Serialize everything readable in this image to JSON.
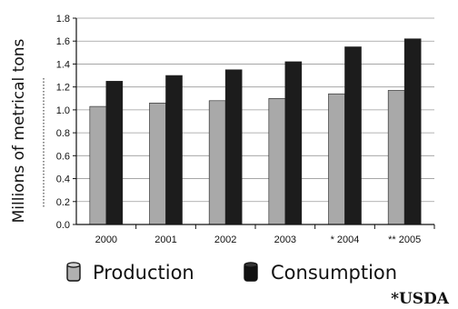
{
  "chart_data": {
    "type": "bar",
    "ylabel": "Millions of metrical tons",
    "xlabel": "",
    "title": "",
    "categories": [
      "2000",
      "2001",
      "2002",
      "2003",
      "* 2004",
      "** 2005"
    ],
    "ylim": [
      0,
      1.8
    ],
    "yticks": [
      "0.0",
      "0.2",
      "0.4",
      "0.6",
      "0.8",
      "1.0",
      "1.2",
      "1.4",
      "1.6",
      "1.8"
    ],
    "grid": true,
    "series": [
      {
        "name": "Production",
        "color": "#a9a9a9",
        "values": [
          1.03,
          1.06,
          1.08,
          1.1,
          1.14,
          1.17
        ]
      },
      {
        "name": "Consumption",
        "color": "#1c1c1c",
        "values": [
          1.25,
          1.3,
          1.35,
          1.42,
          1.55,
          1.62
        ]
      }
    ],
    "legend_position": "bottom",
    "source": "*USDA"
  }
}
